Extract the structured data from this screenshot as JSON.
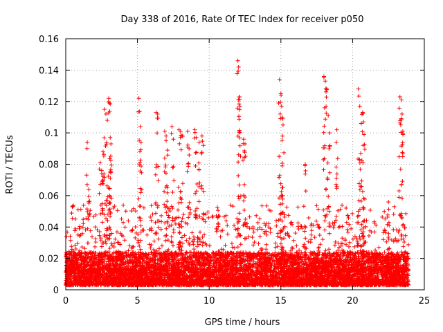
{
  "chart_data": {
    "type": "scatter",
    "title": "Day 338 of 2016, Rate Of TEC Index for receiver p050",
    "xlabel": "GPS time / hours",
    "ylabel": "ROTI / TECUs",
    "xlim": [
      0,
      25
    ],
    "ylim": [
      0,
      0.16
    ],
    "x_ticks": [
      0,
      5,
      10,
      15,
      20,
      25
    ],
    "y_ticks": [
      0,
      0.02,
      0.04,
      0.06,
      0.08,
      0.1,
      0.12,
      0.14,
      0.16
    ],
    "x_tick_labels": [
      "0",
      "5",
      "10",
      "15",
      "20",
      "25"
    ],
    "y_tick_labels": [
      "0",
      "0.02",
      "0.04",
      "0.06",
      "0.08",
      "0.1",
      "0.12",
      "0.14",
      "0.16"
    ],
    "grid": true,
    "marker": "+",
    "marker_color": "#ff0000",
    "data_range_hours": [
      0,
      23.9
    ],
    "series": [
      {
        "name": "ROTI",
        "note": "Dense band 0.003-0.02 across 0-23.9 h; scattered spikes listed as [hour, ROTI]",
        "spikes": [
          [
            1.5,
            0.094
          ],
          [
            1.6,
            0.064
          ],
          [
            2.4,
            0.081
          ],
          [
            2.5,
            0.076
          ],
          [
            2.6,
            0.088
          ],
          [
            2.7,
            0.115
          ],
          [
            2.8,
            0.112
          ],
          [
            2.9,
            0.108
          ],
          [
            3.0,
            0.122
          ],
          [
            3.05,
            0.119
          ],
          [
            3.1,
            0.097
          ],
          [
            3.15,
            0.093
          ],
          [
            5.1,
            0.122
          ],
          [
            5.2,
            0.104
          ],
          [
            5.25,
            0.094
          ],
          [
            6.3,
            0.113
          ],
          [
            6.4,
            0.112
          ],
          [
            6.9,
            0.101
          ],
          [
            7.0,
            0.098
          ],
          [
            7.1,
            0.089
          ],
          [
            7.4,
            0.104
          ],
          [
            7.5,
            0.096
          ],
          [
            7.9,
            0.102
          ],
          [
            8.0,
            0.101
          ],
          [
            8.1,
            0.098
          ],
          [
            8.5,
            0.101
          ],
          [
            8.6,
            0.09
          ],
          [
            9.0,
            0.102
          ],
          [
            9.1,
            0.097
          ],
          [
            9.3,
            0.094
          ],
          [
            9.5,
            0.098
          ],
          [
            9.6,
            0.092
          ],
          [
            12.0,
            0.146
          ],
          [
            12.05,
            0.142
          ],
          [
            12.1,
            0.123
          ],
          [
            12.15,
            0.117
          ],
          [
            12.4,
            0.096
          ],
          [
            12.5,
            0.093
          ],
          [
            14.9,
            0.134
          ],
          [
            15.0,
            0.125
          ],
          [
            15.05,
            0.117
          ],
          [
            15.1,
            0.11
          ],
          [
            15.15,
            0.105
          ],
          [
            16.7,
            0.08
          ],
          [
            18.0,
            0.136
          ],
          [
            18.1,
            0.133
          ],
          [
            18.2,
            0.128
          ],
          [
            18.3,
            0.111
          ],
          [
            18.4,
            0.1
          ],
          [
            18.9,
            0.102
          ],
          [
            20.4,
            0.128
          ],
          [
            20.5,
            0.117
          ],
          [
            20.6,
            0.106
          ],
          [
            20.7,
            0.113
          ],
          [
            20.75,
            0.107
          ],
          [
            20.8,
            0.099
          ],
          [
            22.5,
            0.056
          ],
          [
            23.3,
            0.123
          ],
          [
            23.4,
            0.121
          ],
          [
            23.45,
            0.112
          ],
          [
            23.5,
            0.101
          ]
        ]
      }
    ]
  }
}
